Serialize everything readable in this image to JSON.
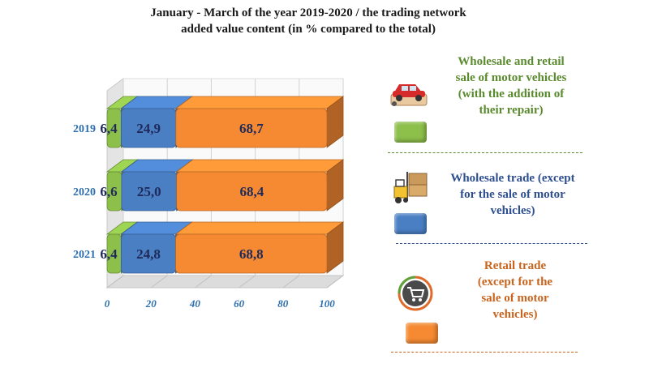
{
  "chart_data": {
    "type": "bar",
    "stacked": true,
    "orientation": "horizontal",
    "title": "January - March of the year 2019-2020 / the trading network added value content (in % compared to the total)",
    "title_lines": [
      "January - March of the year 2019-2020 / the trading network",
      "added value content (in % compared to the total)"
    ],
    "categories": [
      "2019",
      "2020",
      "2021"
    ],
    "series": [
      {
        "name": "Wholesale and retail sale of motor vehicles (with the addition of their repair)",
        "values": [
          6.4,
          6.6,
          6.4
        ],
        "labels": [
          "6,4",
          "6,6",
          "6,4"
        ],
        "color": "#8dbf4b"
      },
      {
        "name": "Wholesale trade (except for the sale of motor vehicles)",
        "values": [
          24.9,
          25.0,
          24.8
        ],
        "labels": [
          "24,9",
          "25,0",
          "24,8"
        ],
        "color": "#4a7fc4"
      },
      {
        "name": "Retail trade (except for the sale of motor vehicles)",
        "values": [
          68.7,
          68.4,
          68.8
        ],
        "labels": [
          "68,7",
          "68,4",
          "68,8"
        ],
        "color": "#f58a32"
      }
    ],
    "xlim": [
      0,
      100
    ],
    "xticks": [
      "0",
      "20",
      "40",
      "60",
      "80",
      "100"
    ],
    "xlabel": "",
    "ylabel": "",
    "grid": true,
    "legend_position": "right"
  },
  "legend": [
    {
      "lines": [
        "Wholesale and retail",
        "sale of motor vehicles",
        "(with the addition of",
        "their repair)"
      ],
      "text_color": "#5a8a2e",
      "swatch_color": "#8dbf4b",
      "line_color": "#5a8a2e",
      "icon": "car-icon"
    },
    {
      "lines": [
        "Wholesale trade (except",
        "for the sale of motor",
        "vehicles)"
      ],
      "text_color": "#2e4f8f",
      "swatch_color": "#4a7fc4",
      "line_color": "#2e4f8f",
      "icon": "forklift-icon"
    },
    {
      "lines": [
        "Retail trade",
        "(except for the",
        "sale of motor",
        "vehicles)"
      ],
      "text_color": "#c8641e",
      "swatch_color": "#f58a32",
      "line_color": "#c8641e",
      "icon": "shopping-cart-icon"
    }
  ]
}
